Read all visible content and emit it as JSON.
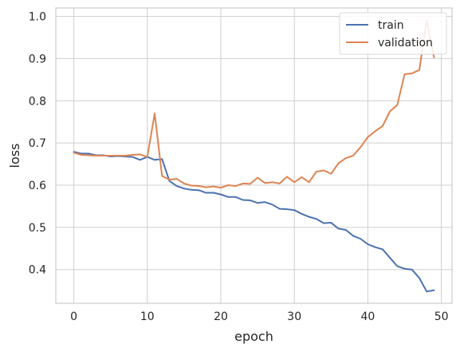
{
  "chart_data": {
    "type": "line",
    "title": "",
    "xlabel": "epoch",
    "ylabel": "loss",
    "xlim": [
      -2.45,
      51.45
    ],
    "ylim": [
      0.32,
      1.02
    ],
    "xticks": [
      0,
      10,
      20,
      30,
      40,
      50
    ],
    "yticks": [
      0.4,
      0.5,
      0.6,
      0.7,
      0.8,
      0.9,
      1.0
    ],
    "grid": true,
    "legend_position": "top-right",
    "x": [
      0,
      1,
      2,
      3,
      4,
      5,
      6,
      7,
      8,
      9,
      10,
      11,
      12,
      13,
      14,
      15,
      16,
      17,
      18,
      19,
      20,
      21,
      22,
      23,
      24,
      25,
      26,
      27,
      28,
      29,
      30,
      31,
      32,
      33,
      34,
      35,
      36,
      37,
      38,
      39,
      40,
      41,
      42,
      43,
      44,
      45,
      46,
      47,
      48,
      49
    ],
    "series": [
      {
        "name": "train",
        "color": "#4C72B0",
        "values": [
          0.679,
          0.675,
          0.675,
          0.671,
          0.671,
          0.668,
          0.669,
          0.668,
          0.667,
          0.66,
          0.667,
          0.66,
          0.662,
          0.61,
          0.598,
          0.592,
          0.589,
          0.588,
          0.582,
          0.582,
          0.578,
          0.572,
          0.572,
          0.565,
          0.564,
          0.558,
          0.56,
          0.554,
          0.544,
          0.543,
          0.541,
          0.532,
          0.525,
          0.52,
          0.51,
          0.511,
          0.497,
          0.494,
          0.48,
          0.473,
          0.46,
          0.453,
          0.448,
          0.428,
          0.408,
          0.402,
          0.4,
          0.38,
          0.348,
          0.351
        ]
      },
      {
        "name": "validation",
        "color": "#DD8452",
        "values": [
          0.677,
          0.672,
          0.671,
          0.67,
          0.67,
          0.67,
          0.67,
          0.67,
          0.672,
          0.673,
          0.667,
          0.77,
          0.622,
          0.613,
          0.615,
          0.604,
          0.599,
          0.598,
          0.595,
          0.597,
          0.594,
          0.6,
          0.598,
          0.604,
          0.603,
          0.618,
          0.605,
          0.607,
          0.604,
          0.62,
          0.607,
          0.619,
          0.607,
          0.632,
          0.635,
          0.627,
          0.652,
          0.664,
          0.67,
          0.69,
          0.714,
          0.728,
          0.74,
          0.775,
          0.79,
          0.863,
          0.865,
          0.873,
          0.99,
          0.903
        ]
      }
    ]
  }
}
